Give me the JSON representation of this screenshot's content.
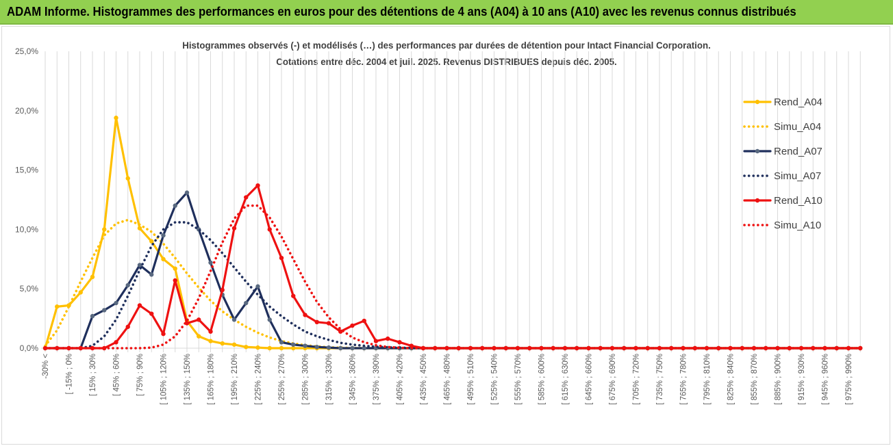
{
  "header": {
    "title": "ADAM Informe. Histogrammes des performances en euros pour des détentions de 4 ans (A04) à 10 ans (A10) avec les revenus connus distribués"
  },
  "chart_data": {
    "type": "line",
    "title": "Histogrammes observés (-) et modélisés (…) des performances par durées de détention pour Intact Financial Corporation.",
    "subtitle": "Cotations entre déc. 2004 et juil. 2025. Revenus DISTRIBUES depuis déc. 2005.",
    "xlabel": "",
    "ylabel": "",
    "ylim": [
      0,
      25
    ],
    "yticks": [
      "0,0%",
      "5,0%",
      "10,0%",
      "15,0%",
      "20,0%",
      "25,0%"
    ],
    "grid": "vertical",
    "legend_position": "right",
    "x_tick_labels": [
      "-30% <",
      "[ -15% ; 0%",
      "[ 15% ; 30%",
      "[ 45% ; 60%",
      "[ 75% ; 90%",
      "[ 105% ; 120%",
      "[ 135% ; 150%",
      "[ 165% ; 180%",
      "[ 195% ; 210%",
      "[ 225% ; 240%",
      "[ 255% ; 270%",
      "[ 285% ; 300%",
      "[ 315% ; 330%",
      "[ 345% ; 360%",
      "[ 375% ; 390%",
      "[ 405% ; 420%",
      "[ 435% ; 450%",
      "[ 465% ; 480%",
      "[ 495% ; 510%",
      "[ 525% ; 540%",
      "[ 555% ; 570%",
      "[ 585% ; 600%",
      "[ 615% ; 630%",
      "[ 645% ; 660%",
      "[ 675% ; 690%",
      "[ 705% ; 720%",
      "[ 735% ; 750%",
      "[ 765% ; 780%",
      "[ 795% ; 810%",
      "[ 825% ; 840%",
      "[ 855% ; 870%",
      "[ 885% ; 900%",
      "[ 915% ; 930%",
      "[ 945% ; 960%",
      "[ 975% ; 990%"
    ],
    "num_points": 70,
    "series": [
      {
        "name": "Rend_A04",
        "color": "#ffc000",
        "style": "solid",
        "markers": true,
        "values": [
          0.0,
          3.5,
          3.6,
          4.7,
          6.0,
          10.0,
          19.4,
          14.3,
          10.1,
          9.0,
          7.5,
          6.7,
          2.3,
          1.0,
          0.6,
          0.4,
          0.3,
          0.1,
          0.05,
          0.0,
          0.0,
          0.0,
          0.0
        ]
      },
      {
        "name": "Simu_A04",
        "color": "#ffc000",
        "style": "dotted",
        "markers": false,
        "values": [
          0.2,
          1.5,
          3.5,
          5.6,
          7.6,
          9.5,
          10.5,
          10.8,
          10.4,
          9.8,
          8.8,
          7.6,
          6.3,
          5.1,
          4.0,
          3.1,
          2.4,
          1.8,
          1.3,
          0.9,
          0.6,
          0.4,
          0.25,
          0.15,
          0.08,
          0.04,
          0.02,
          0.0
        ]
      },
      {
        "name": "Rend_A07",
        "color": "#1f2f5c",
        "style": "solid",
        "markers": true,
        "values": [
          0.0,
          0.0,
          0.0,
          0.0,
          2.7,
          3.2,
          3.8,
          5.3,
          7.0,
          6.2,
          9.5,
          12.0,
          13.1,
          10.0,
          7.2,
          4.5,
          2.4,
          3.8,
          5.2,
          2.4,
          0.5,
          0.3,
          0.2,
          0.1,
          0.05,
          0.0,
          0.0,
          0.0,
          0.0,
          0.0,
          0.0,
          0.0
        ]
      },
      {
        "name": "Simu_A07",
        "color": "#1f2f5c",
        "style": "dotted",
        "markers": false,
        "values": [
          0.0,
          0.0,
          0.0,
          0.0,
          0.2,
          1.0,
          2.4,
          4.4,
          6.6,
          8.6,
          10.0,
          10.6,
          10.6,
          10.0,
          9.1,
          8.0,
          6.8,
          5.6,
          4.5,
          3.5,
          2.7,
          2.0,
          1.4,
          1.0,
          0.7,
          0.45,
          0.3,
          0.2,
          0.12,
          0.07,
          0.04,
          0.02,
          0.0
        ]
      },
      {
        "name": "Rend_A10",
        "color": "#ee1111",
        "style": "solid",
        "markers": true,
        "values": [
          0.0,
          0.0,
          0.0,
          0.0,
          0.0,
          0.0,
          0.5,
          1.8,
          3.6,
          2.9,
          1.2,
          5.7,
          2.1,
          2.4,
          1.4,
          4.9,
          10.1,
          12.7,
          13.7,
          10.0,
          7.6,
          4.4,
          2.8,
          2.2,
          2.1,
          1.4,
          1.9,
          2.3,
          0.6,
          0.8,
          0.5,
          0.2,
          0.0
        ]
      },
      {
        "name": "Simu_A10",
        "color": "#ee1111",
        "style": "dotted",
        "markers": false,
        "values": [
          0.0,
          0.0,
          0.0,
          0.0,
          0.0,
          0.0,
          0.0,
          0.0,
          0.0,
          0.05,
          0.3,
          1.0,
          2.3,
          4.2,
          6.5,
          8.9,
          10.9,
          12.0,
          12.0,
          11.0,
          9.4,
          7.5,
          5.6,
          3.9,
          2.6,
          1.6,
          0.9,
          0.5,
          0.25,
          0.1,
          0.04,
          0.0
        ]
      }
    ]
  }
}
